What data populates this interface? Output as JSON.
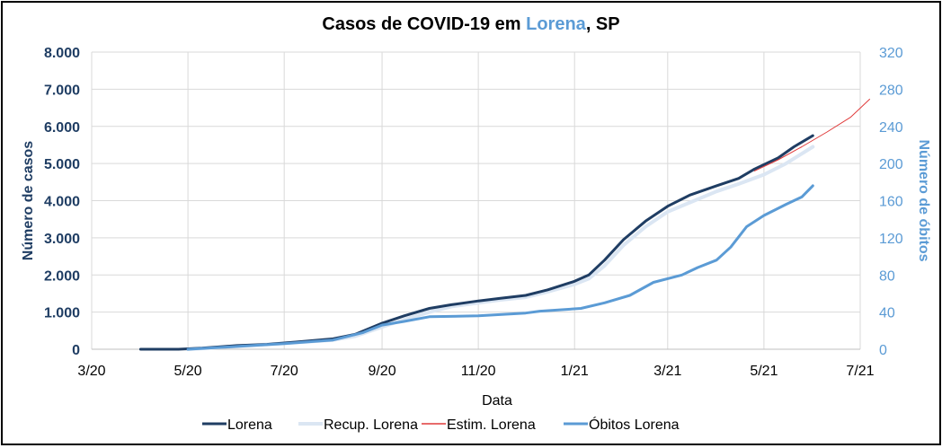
{
  "colors": {
    "cases": "#1f3d63",
    "recovered": "#dbe6f3",
    "estimate": "#e03a3a",
    "deaths": "#5b9bd5",
    "left_axis": "#1f3d63",
    "right_axis": "#5b9bd5",
    "grid": "#d9d9d9"
  },
  "title_parts": {
    "before": "Casos de COVID-19 em ",
    "city": "Lorena",
    "after": ", SP"
  },
  "chart_data": {
    "type": "line",
    "title": "Casos de COVID-19 em Lorena, SP",
    "xlabel": "Data",
    "ylabel": "Número de casos",
    "y2label": "Número de óbitos",
    "x_range": [
      "2020-03-01",
      "2021-07-01"
    ],
    "ylim": [
      0,
      8000
    ],
    "y2lim": [
      0,
      320
    ],
    "x_ticks": [
      {
        "date": "2020-03-01",
        "label": "3/20"
      },
      {
        "date": "2020-05-01",
        "label": "5/20"
      },
      {
        "date": "2020-07-01",
        "label": "7/20"
      },
      {
        "date": "2020-09-01",
        "label": "9/20"
      },
      {
        "date": "2020-11-01",
        "label": "11/20"
      },
      {
        "date": "2021-01-01",
        "label": "1/21"
      },
      {
        "date": "2021-03-01",
        "label": "3/21"
      },
      {
        "date": "2021-05-01",
        "label": "5/21"
      },
      {
        "date": "2021-07-01",
        "label": "7/21"
      }
    ],
    "y_ticks": [
      {
        "value": 0,
        "label": "0"
      },
      {
        "value": 1000,
        "label": "1.000"
      },
      {
        "value": 2000,
        "label": "2.000"
      },
      {
        "value": 3000,
        "label": "3.000"
      },
      {
        "value": 4000,
        "label": "4.000"
      },
      {
        "value": 5000,
        "label": "5.000"
      },
      {
        "value": 6000,
        "label": "6.000"
      },
      {
        "value": 7000,
        "label": "7.000"
      },
      {
        "value": 8000,
        "label": "8.000"
      }
    ],
    "y2_ticks": [
      {
        "value": 0,
        "label": "0"
      },
      {
        "value": 40,
        "label": "40"
      },
      {
        "value": 80,
        "label": "80"
      },
      {
        "value": 120,
        "label": "120"
      },
      {
        "value": 160,
        "label": "160"
      },
      {
        "value": 200,
        "label": "200"
      },
      {
        "value": 240,
        "label": "240"
      },
      {
        "value": 280,
        "label": "280"
      },
      {
        "value": 320,
        "label": "320"
      }
    ],
    "grid": true,
    "legend_position": "bottom",
    "series": [
      {
        "name": "Lorena",
        "axis": "left",
        "color_key": "cases",
        "width": 3,
        "points": [
          [
            "2020-04-01",
            0
          ],
          [
            "2020-04-25",
            0
          ],
          [
            "2020-05-10",
            30
          ],
          [
            "2020-06-01",
            100
          ],
          [
            "2020-06-20",
            130
          ],
          [
            "2020-07-10",
            200
          ],
          [
            "2020-08-01",
            280
          ],
          [
            "2020-08-15",
            400
          ],
          [
            "2020-09-01",
            700
          ],
          [
            "2020-09-15",
            900
          ],
          [
            "2020-10-01",
            1100
          ],
          [
            "2020-10-15",
            1200
          ],
          [
            "2020-11-01",
            1300
          ],
          [
            "2020-11-15",
            1370
          ],
          [
            "2020-12-01",
            1450
          ],
          [
            "2020-12-15",
            1600
          ],
          [
            "2021-01-01",
            1830
          ],
          [
            "2021-01-10",
            2000
          ],
          [
            "2021-01-20",
            2400
          ],
          [
            "2021-02-01",
            2950
          ],
          [
            "2021-02-15",
            3450
          ],
          [
            "2021-03-01",
            3850
          ],
          [
            "2021-03-15",
            4150
          ],
          [
            "2021-04-01",
            4400
          ],
          [
            "2021-04-15",
            4600
          ],
          [
            "2021-04-25",
            4850
          ],
          [
            "2021-05-10",
            5150
          ],
          [
            "2021-05-20",
            5450
          ],
          [
            "2021-06-01",
            5750
          ]
        ]
      },
      {
        "name": "Recup. Lorena",
        "axis": "left",
        "color_key": "recovered",
        "width": 4,
        "points": [
          [
            "2020-05-01",
            0
          ],
          [
            "2020-06-01",
            80
          ],
          [
            "2020-07-01",
            160
          ],
          [
            "2020-08-01",
            250
          ],
          [
            "2020-08-15",
            350
          ],
          [
            "2020-09-01",
            600
          ],
          [
            "2020-09-15",
            800
          ],
          [
            "2020-10-01",
            1000
          ],
          [
            "2020-10-15",
            1150
          ],
          [
            "2020-11-01",
            1250
          ],
          [
            "2020-11-15",
            1330
          ],
          [
            "2020-12-01",
            1400
          ],
          [
            "2020-12-15",
            1550
          ],
          [
            "2021-01-01",
            1750
          ],
          [
            "2021-01-10",
            1900
          ],
          [
            "2021-01-20",
            2250
          ],
          [
            "2021-02-01",
            2800
          ],
          [
            "2021-02-15",
            3300
          ],
          [
            "2021-03-01",
            3700
          ],
          [
            "2021-03-15",
            3950
          ],
          [
            "2021-04-01",
            4250
          ],
          [
            "2021-04-15",
            4450
          ],
          [
            "2021-05-01",
            4700
          ],
          [
            "2021-05-15",
            5000
          ],
          [
            "2021-06-01",
            5450
          ]
        ]
      },
      {
        "name": "Estim. Lorena",
        "axis": "left",
        "color_key": "estimate",
        "width": 1,
        "points": [
          [
            "2021-04-25",
            4800
          ],
          [
            "2021-05-10",
            5100
          ],
          [
            "2021-05-25",
            5450
          ],
          [
            "2021-06-10",
            5850
          ],
          [
            "2021-06-25",
            6250
          ],
          [
            "2021-07-07",
            6730
          ]
        ]
      },
      {
        "name": "Óbitos Lorena",
        "axis": "right",
        "color_key": "deaths",
        "width": 3,
        "points": [
          [
            "2020-05-01",
            0
          ],
          [
            "2020-06-01",
            3
          ],
          [
            "2020-07-01",
            6
          ],
          [
            "2020-08-01",
            10
          ],
          [
            "2020-08-20",
            18
          ],
          [
            "2020-09-01",
            26
          ],
          [
            "2020-09-15",
            30
          ],
          [
            "2020-10-01",
            35
          ],
          [
            "2020-11-01",
            36
          ],
          [
            "2020-12-01",
            39
          ],
          [
            "2020-12-10",
            41
          ],
          [
            "2021-01-05",
            44
          ],
          [
            "2021-01-20",
            50
          ],
          [
            "2021-02-05",
            58
          ],
          [
            "2021-02-20",
            72
          ],
          [
            "2021-03-10",
            80
          ],
          [
            "2021-03-20",
            88
          ],
          [
            "2021-04-01",
            96
          ],
          [
            "2021-04-10",
            110
          ],
          [
            "2021-04-20",
            132
          ],
          [
            "2021-05-01",
            144
          ],
          [
            "2021-05-15",
            156
          ],
          [
            "2021-05-25",
            164
          ],
          [
            "2021-06-01",
            176
          ]
        ]
      }
    ]
  }
}
